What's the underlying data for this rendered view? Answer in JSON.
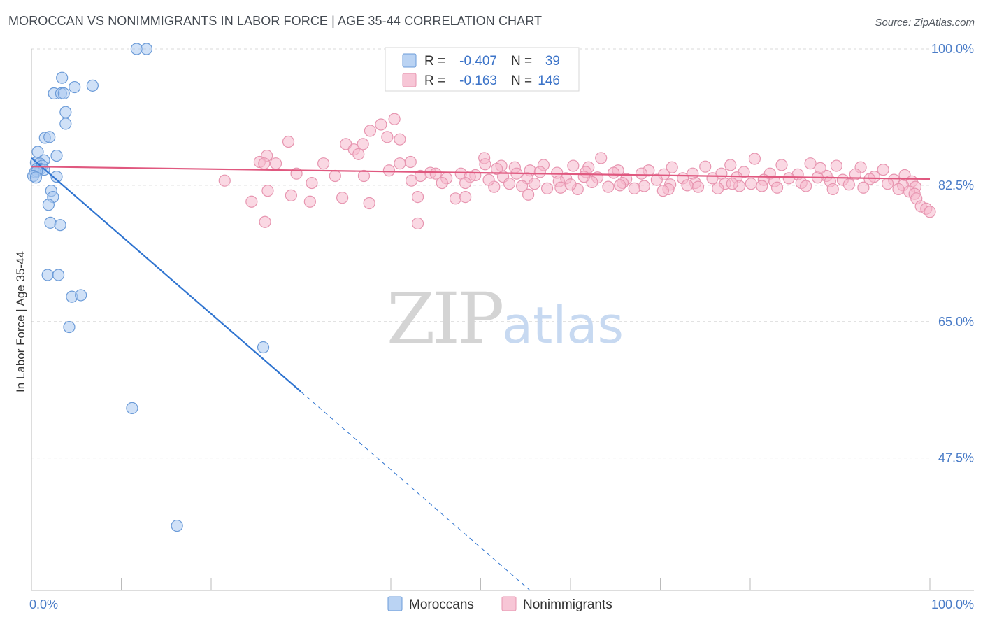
{
  "title": "MOROCCAN VS NONIMMIGRANTS IN LABOR FORCE | AGE 35-44 CORRELATION CHART",
  "source": "Source: ZipAtlas.com",
  "watermark": {
    "zip": "ZIP",
    "atlas": "atlas"
  },
  "chart_data": {
    "type": "scatter",
    "xlabel": "",
    "ylabel": "In Labor Force | Age 35-44",
    "xlim": [
      0,
      100
    ],
    "ylim": [
      30.5,
      100
    ],
    "x_tick_labels": [
      "0.0%",
      "100.0%"
    ],
    "y_ticks": [
      {
        "value": 47.5,
        "label": "47.5%"
      },
      {
        "value": 65.0,
        "label": "65.0%"
      },
      {
        "value": 82.5,
        "label": "82.5%"
      },
      {
        "value": 100.0,
        "label": "100.0%"
      }
    ],
    "grid": true,
    "legend_position": "top-center",
    "stats": [
      {
        "r_label": "R =",
        "r_value": "-0.407",
        "n_label": "N =",
        "n_value": "39",
        "color": "#a9c8f0"
      },
      {
        "r_label": "R =",
        "r_value": "-0.163",
        "n_label": "N =",
        "n_value": "146",
        "color": "#f5b8cc"
      }
    ],
    "series": [
      {
        "name": "Moroccans",
        "color": "#a9c8f0",
        "stroke": "#6b9bd8",
        "trend_color": "#2f74d0",
        "trend": {
          "x0": 0,
          "y0": 86.0,
          "x1": 30,
          "y1": 56.0,
          "x_dash_end": 55.5
        },
        "points": [
          [
            11.7,
            100.0
          ],
          [
            12.8,
            100.0
          ],
          [
            3.4,
            96.3
          ],
          [
            4.8,
            95.1
          ],
          [
            6.8,
            95.3
          ],
          [
            2.5,
            94.3
          ],
          [
            3.3,
            94.3
          ],
          [
            3.6,
            94.3
          ],
          [
            3.8,
            91.9
          ],
          [
            3.8,
            90.4
          ],
          [
            1.5,
            88.6
          ],
          [
            2.0,
            88.7
          ],
          [
            0.7,
            86.8
          ],
          [
            2.8,
            86.3
          ],
          [
            1.4,
            85.7
          ],
          [
            0.5,
            85.4
          ],
          [
            0.9,
            85.3
          ],
          [
            0.6,
            84.6
          ],
          [
            1.2,
            85.0
          ],
          [
            1.0,
            84.6
          ],
          [
            1.4,
            84.5
          ],
          [
            0.4,
            84.2
          ],
          [
            0.6,
            84.3
          ],
          [
            0.2,
            83.7
          ],
          [
            0.5,
            83.5
          ],
          [
            2.8,
            83.6
          ],
          [
            2.2,
            81.8
          ],
          [
            2.4,
            81.0
          ],
          [
            1.9,
            80.0
          ],
          [
            2.1,
            77.7
          ],
          [
            3.2,
            77.4
          ],
          [
            1.8,
            71.0
          ],
          [
            3.0,
            71.0
          ],
          [
            4.5,
            68.2
          ],
          [
            5.5,
            68.4
          ],
          [
            4.2,
            64.3
          ],
          [
            25.8,
            61.7
          ],
          [
            11.2,
            53.9
          ],
          [
            16.2,
            38.8
          ]
        ]
      },
      {
        "name": "Nonimmigrants",
        "color": "#f5b8cc",
        "stroke": "#e795b0",
        "trend_color": "#e0587f",
        "trend": {
          "x0": 0,
          "y0": 84.9,
          "x1": 100,
          "y1": 83.3
        },
        "points": [
          [
            40.4,
            91.0
          ],
          [
            38.9,
            90.3
          ],
          [
            37.7,
            89.5
          ],
          [
            39.6,
            88.7
          ],
          [
            41.0,
            88.4
          ],
          [
            28.6,
            88.1
          ],
          [
            35.0,
            87.8
          ],
          [
            36.9,
            87.8
          ],
          [
            35.9,
            87.1
          ],
          [
            36.4,
            86.5
          ],
          [
            26.2,
            86.3
          ],
          [
            25.4,
            85.5
          ],
          [
            25.9,
            85.3
          ],
          [
            27.2,
            85.3
          ],
          [
            32.5,
            85.3
          ],
          [
            41.0,
            85.3
          ],
          [
            42.2,
            85.5
          ],
          [
            50.4,
            86.0
          ],
          [
            50.5,
            85.2
          ],
          [
            52.3,
            85.0
          ],
          [
            53.8,
            84.8
          ],
          [
            51.8,
            84.6
          ],
          [
            55.5,
            84.4
          ],
          [
            57.0,
            85.1
          ],
          [
            60.3,
            85.0
          ],
          [
            62.0,
            84.8
          ],
          [
            63.4,
            86.0
          ],
          [
            65.3,
            84.4
          ],
          [
            68.7,
            84.4
          ],
          [
            71.3,
            84.8
          ],
          [
            75.0,
            84.9
          ],
          [
            77.8,
            85.1
          ],
          [
            80.5,
            85.9
          ],
          [
            83.5,
            85.1
          ],
          [
            86.7,
            85.3
          ],
          [
            89.6,
            85.0
          ],
          [
            92.3,
            84.8
          ],
          [
            94.8,
            84.5
          ],
          [
            39.8,
            84.4
          ],
          [
            29.5,
            84.0
          ],
          [
            33.8,
            83.7
          ],
          [
            44.4,
            84.1
          ],
          [
            45.0,
            84.0
          ],
          [
            47.8,
            84.0
          ],
          [
            49.4,
            83.8
          ],
          [
            54.0,
            84.0
          ],
          [
            58.5,
            84.1
          ],
          [
            61.7,
            84.2
          ],
          [
            64.8,
            84.1
          ],
          [
            67.9,
            84.0
          ],
          [
            70.4,
            83.9
          ],
          [
            73.6,
            84.0
          ],
          [
            76.8,
            84.0
          ],
          [
            79.3,
            84.2
          ],
          [
            82.2,
            84.0
          ],
          [
            85.3,
            83.9
          ],
          [
            88.5,
            83.7
          ],
          [
            91.7,
            83.9
          ],
          [
            93.8,
            83.6
          ],
          [
            97.2,
            83.8
          ],
          [
            43.3,
            83.7
          ],
          [
            46.2,
            83.4
          ],
          [
            48.8,
            83.6
          ],
          [
            52.5,
            83.6
          ],
          [
            55.2,
            83.4
          ],
          [
            59.5,
            83.4
          ],
          [
            63.0,
            83.5
          ],
          [
            66.2,
            83.3
          ],
          [
            69.6,
            83.2
          ],
          [
            72.5,
            83.4
          ],
          [
            75.8,
            83.4
          ],
          [
            78.5,
            83.5
          ],
          [
            81.5,
            83.2
          ],
          [
            84.3,
            83.4
          ],
          [
            87.5,
            83.5
          ],
          [
            90.3,
            83.2
          ],
          [
            93.3,
            83.3
          ],
          [
            96.0,
            83.2
          ],
          [
            98.0,
            83.0
          ],
          [
            21.5,
            83.1
          ],
          [
            26.3,
            81.8
          ],
          [
            31.2,
            82.8
          ],
          [
            37.0,
            83.7
          ],
          [
            45.7,
            82.8
          ],
          [
            48.3,
            82.8
          ],
          [
            53.2,
            82.7
          ],
          [
            56.0,
            82.7
          ],
          [
            58.7,
            83.0
          ],
          [
            62.4,
            82.9
          ],
          [
            65.8,
            82.8
          ],
          [
            68.2,
            82.4
          ],
          [
            71.1,
            82.6
          ],
          [
            73.9,
            82.8
          ],
          [
            77.2,
            82.7
          ],
          [
            80.1,
            82.7
          ],
          [
            82.7,
            83.0
          ],
          [
            85.7,
            82.8
          ],
          [
            88.9,
            83.0
          ],
          [
            91.0,
            82.6
          ],
          [
            95.3,
            82.7
          ],
          [
            97.0,
            82.5
          ],
          [
            98.4,
            82.3
          ],
          [
            51.5,
            82.3
          ],
          [
            54.6,
            82.4
          ],
          [
            57.4,
            82.1
          ],
          [
            60.8,
            82.0
          ],
          [
            64.2,
            82.3
          ],
          [
            67.1,
            82.1
          ],
          [
            70.9,
            82.0
          ],
          [
            74.2,
            82.3
          ],
          [
            76.4,
            82.1
          ],
          [
            78.8,
            82.4
          ],
          [
            83.0,
            82.2
          ],
          [
            86.2,
            82.4
          ],
          [
            89.2,
            82.0
          ],
          [
            92.6,
            82.2
          ],
          [
            96.5,
            82.0
          ],
          [
            97.7,
            81.7
          ],
          [
            98.3,
            81.4
          ],
          [
            98.5,
            80.8
          ],
          [
            99.0,
            79.8
          ],
          [
            99.6,
            79.5
          ],
          [
            100.0,
            79.1
          ],
          [
            24.5,
            80.4
          ],
          [
            28.9,
            81.2
          ],
          [
            31.0,
            80.4
          ],
          [
            34.6,
            80.9
          ],
          [
            37.6,
            80.2
          ],
          [
            43.0,
            81.0
          ],
          [
            47.2,
            80.8
          ],
          [
            48.3,
            81.0
          ],
          [
            55.3,
            81.3
          ],
          [
            58.9,
            82.2
          ],
          [
            60.0,
            82.6
          ],
          [
            65.5,
            82.5
          ],
          [
            70.3,
            81.8
          ],
          [
            73.0,
            82.5
          ],
          [
            78.0,
            82.7
          ],
          [
            81.3,
            82.4
          ],
          [
            26.0,
            77.8
          ],
          [
            43.0,
            77.6
          ],
          [
            61.5,
            83.6
          ],
          [
            42.3,
            83.1
          ],
          [
            50.9,
            83.2
          ],
          [
            56.6,
            84.2
          ],
          [
            87.8,
            84.7
          ]
        ]
      }
    ]
  }
}
